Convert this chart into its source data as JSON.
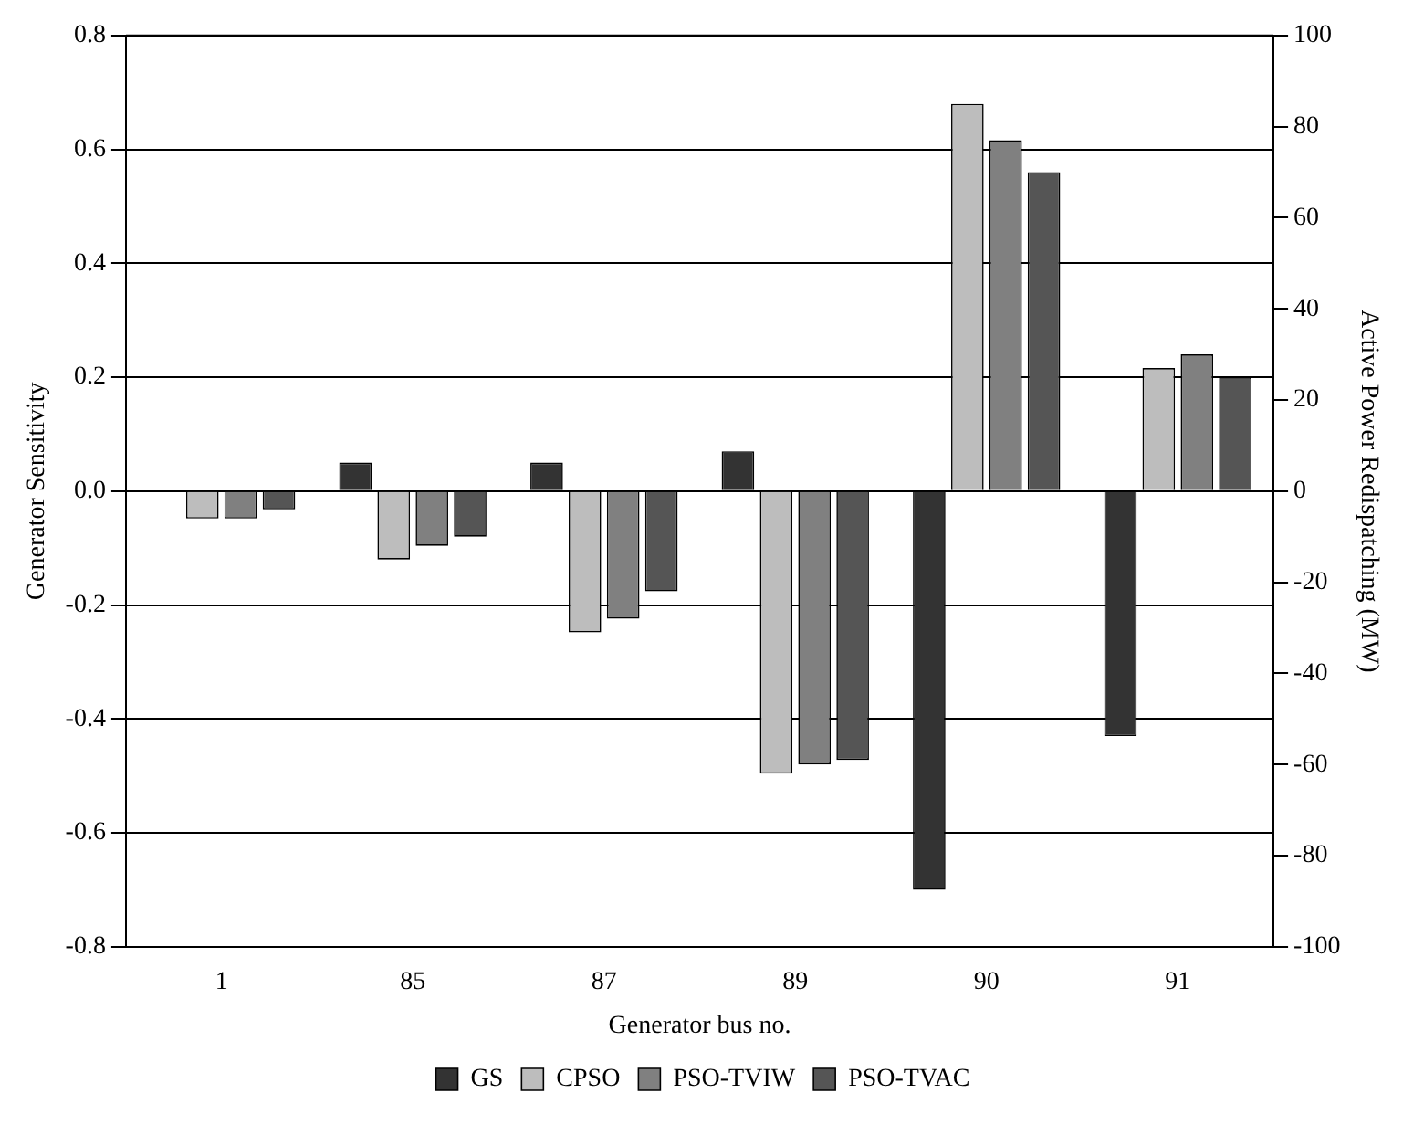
{
  "chart_data": {
    "type": "bar",
    "xlabel": "Generator bus no.",
    "ylabel": "Generator Sensitivity",
    "y2label": "Active Power Redispatching (MW)",
    "categories": [
      "1",
      "85",
      "87",
      "89",
      "90",
      "91"
    ],
    "series": [
      {
        "name": "GS",
        "color": "#333333",
        "values": [
          null,
          0.05,
          0.05,
          0.07,
          -0.7,
          -0.43
        ]
      },
      {
        "name": "CPSO",
        "color": "#bdbdbd",
        "values": [
          -6,
          -15,
          -31,
          -62,
          85,
          27
        ],
        "axis": "y2"
      },
      {
        "name": "PSO-TVIW",
        "color": "#808080",
        "values": [
          -6,
          -12,
          -28,
          -60,
          77,
          30
        ],
        "axis": "y2"
      },
      {
        "name": "PSO-TVAC",
        "color": "#555555",
        "values": [
          -4,
          -10,
          -22,
          -59,
          70,
          25
        ],
        "axis": "y2"
      }
    ],
    "ylim": [
      -0.8,
      0.8
    ],
    "yticks": [
      -0.8,
      -0.6,
      -0.4,
      -0.2,
      {
        "value": 0,
        "label": "0.0"
      },
      0.2,
      0.4,
      0.6,
      0.8
    ],
    "y2lim": [
      -100,
      100
    ],
    "y2ticks": [
      -100,
      -80,
      -60,
      -40,
      -20,
      0,
      20,
      40,
      60,
      80,
      100
    ],
    "grid": "y",
    "legend": "bottom"
  }
}
